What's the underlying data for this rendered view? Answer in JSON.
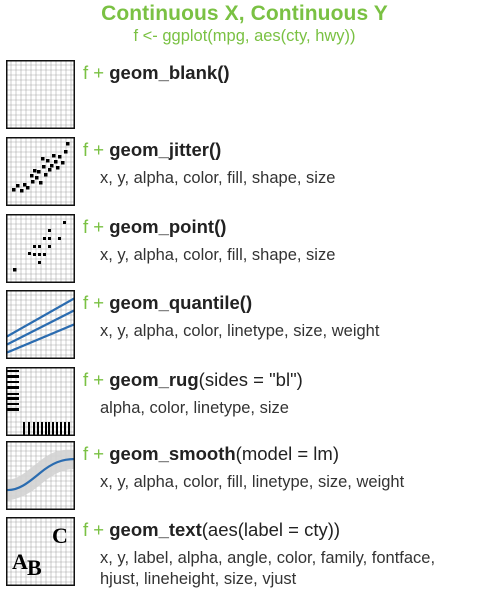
{
  "header": {
    "title": "Continuous X, Continuous Y",
    "subtitle": "f <- ggplot(mpg, aes(cty, hwy))"
  },
  "rows": [
    {
      "prefix": "f + ",
      "fn": "geom_blank",
      "args": "()",
      "aes": []
    },
    {
      "prefix": "f + ",
      "fn": "geom_jitter",
      "args": "()",
      "aes": [
        "x, y, alpha, color, fill, shape, size"
      ]
    },
    {
      "prefix": "f + ",
      "fn": "geom_point",
      "args": "()",
      "aes": [
        "x, y, alpha, color, fill, shape, size"
      ]
    },
    {
      "prefix": "f + ",
      "fn": "geom_quantile",
      "args": "()",
      "aes": [
        "x, y, alpha, color, linetype, size, weight"
      ]
    },
    {
      "prefix": "f + ",
      "fn": "geom_rug",
      "args": "(sides = \"bl\")",
      "aes": [
        "alpha, color, linetype, size"
      ]
    },
    {
      "prefix": "f + ",
      "fn": "geom_smooth",
      "args": "(model = lm)",
      "aes": [
        "x, y, alpha, color, fill, linetype, size, weight"
      ]
    },
    {
      "prefix": "f + ",
      "fn": "geom_text",
      "args": "(aes(label = cty))",
      "aes": [
        "x, y, label, alpha, angle, color, family, fontface,",
        "hjust, lineheight, size, vjust"
      ]
    }
  ],
  "text_icon_letters": [
    "A",
    "B",
    "C"
  ],
  "colors": {
    "accent": "#7ac143",
    "line_blue": "#2b6cb0",
    "band_grey": "#d3d3d3",
    "grid": "#aaaaaa"
  }
}
